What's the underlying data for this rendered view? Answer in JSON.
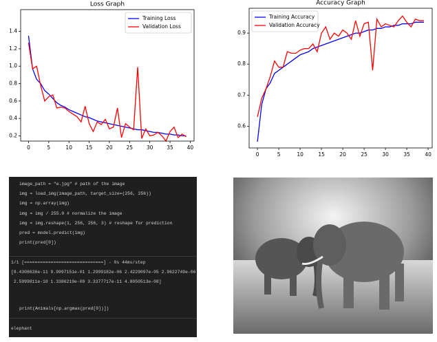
{
  "chart_data": [
    {
      "type": "line",
      "title": "Loss Graph",
      "legend": "upper right",
      "x": [
        0,
        1,
        2,
        3,
        4,
        5,
        6,
        7,
        8,
        9,
        10,
        11,
        12,
        13,
        14,
        15,
        16,
        17,
        18,
        19,
        20,
        21,
        22,
        23,
        24,
        25,
        26,
        27,
        28,
        29,
        30,
        31,
        32,
        33,
        34,
        35,
        36,
        37,
        38,
        39
      ],
      "series": [
        {
          "name": "Training Loss",
          "color": "#0000ff",
          "values": [
            1.35,
            0.97,
            0.85,
            0.8,
            0.72,
            0.68,
            0.63,
            0.58,
            0.55,
            0.53,
            0.5,
            0.48,
            0.46,
            0.44,
            0.42,
            0.41,
            0.39,
            0.37,
            0.36,
            0.35,
            0.34,
            0.33,
            0.32,
            0.31,
            0.3,
            0.29,
            0.28,
            0.27,
            0.27,
            0.26,
            0.25,
            0.24,
            0.24,
            0.23,
            0.22,
            0.22,
            0.21,
            0.21,
            0.2,
            0.2
          ]
        },
        {
          "name": "Validation Loss",
          "color": "#ff0000",
          "values": [
            1.27,
            0.97,
            1.0,
            0.78,
            0.6,
            0.65,
            0.67,
            0.52,
            0.53,
            0.52,
            0.48,
            0.45,
            0.42,
            0.36,
            0.54,
            0.34,
            0.25,
            0.36,
            0.33,
            0.39,
            0.28,
            0.3,
            0.52,
            0.18,
            0.34,
            0.3,
            0.27,
            0.99,
            0.17,
            0.28,
            0.2,
            0.21,
            0.24,
            0.2,
            0.14,
            0.25,
            0.3,
            0.18,
            0.22,
            0.19
          ]
        }
      ],
      "xlim": [
        -1.95,
        40.95
      ],
      "xticks": [
        0,
        5,
        10,
        15,
        20,
        25,
        30,
        35,
        40
      ],
      "ylim": [
        0.14,
        1.65
      ],
      "yticks": [
        0.2,
        0.4,
        0.6,
        0.8,
        {
          "value": 1,
          "label": "1.0"
        },
        1.2,
        1.4
      ]
    },
    {
      "type": "line",
      "title": "Accuracy Graph",
      "legend": "upper left",
      "x": [
        0,
        1,
        2,
        3,
        4,
        5,
        6,
        7,
        8,
        9,
        10,
        11,
        12,
        13,
        14,
        15,
        16,
        17,
        18,
        19,
        20,
        21,
        22,
        23,
        24,
        25,
        26,
        27,
        28,
        29,
        30,
        31,
        32,
        33,
        34,
        35,
        36,
        37,
        38,
        39
      ],
      "series": [
        {
          "name": "Training Accuracy",
          "color": "#0000ff",
          "values": [
            0.55,
            0.67,
            0.72,
            0.74,
            0.77,
            0.78,
            0.79,
            0.8,
            0.81,
            0.82,
            0.83,
            0.835,
            0.84,
            0.85,
            0.855,
            0.86,
            0.865,
            0.87,
            0.875,
            0.88,
            0.885,
            0.89,
            0.895,
            0.9,
            0.9,
            0.905,
            0.91,
            0.91,
            0.915,
            0.915,
            0.92,
            0.92,
            0.925,
            0.925,
            0.93,
            0.93,
            0.93,
            0.935,
            0.935,
            0.935
          ]
        },
        {
          "name": "Validation Accuracy",
          "color": "#ff0000",
          "values": [
            0.63,
            0.69,
            0.72,
            0.76,
            0.81,
            0.79,
            0.79,
            0.84,
            0.835,
            0.835,
            0.845,
            0.85,
            0.85,
            0.865,
            0.84,
            0.9,
            0.92,
            0.88,
            0.9,
            0.89,
            0.91,
            0.9,
            0.88,
            0.94,
            0.89,
            0.93,
            0.935,
            0.78,
            0.945,
            0.92,
            0.93,
            0.925,
            0.92,
            0.94,
            0.955,
            0.935,
            0.92,
            0.945,
            0.94,
            0.94
          ]
        }
      ],
      "xlim": [
        -1.95,
        40.95
      ],
      "xticks": [
        0,
        5,
        10,
        15,
        20,
        25,
        30,
        35,
        40
      ],
      "ylim": [
        0.53,
        0.98
      ],
      "yticks": [
        0.6,
        0.7,
        0.8,
        0.9
      ]
    }
  ],
  "code_panel": {
    "cell1": [
      "image_path = \"e.jpg\" # path of the image",
      "img = load_img(image_path, target_size=(256, 256))",
      "img = np.array(img)",
      "img = img / 255.0 # normalize the image",
      "img = img.reshape(1, 256, 256, 3) # reshape for prediction",
      "pred = model.predict(img)",
      "print(pred[0])"
    ],
    "output1": [
      "1/1 [==============================] - 0s 44ms/step",
      "[8.4308636e-11 9.9997151e-01 1.2999182e-06 2.4229097e-05 2.9622749e-06",
      " 2.5999811e-10 1.3386219e-09 3.3377717e-11 4.8050513e-08]"
    ],
    "cell2": [
      "print(Animals[np.argmax(pred[0])])"
    ],
    "output2": [
      "elephant"
    ]
  }
}
